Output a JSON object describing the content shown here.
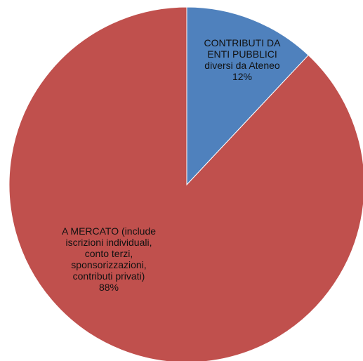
{
  "chart_data": {
    "type": "pie",
    "title": "",
    "slices": [
      {
        "label_lines": [
          "CONTRIBUTI DA",
          "ENTI PUBBLICI",
          "diversi da Ateneo"
        ],
        "percent_label": "12%",
        "value": 12,
        "color": "#4f81bd"
      },
      {
        "label_lines": [
          "A MERCATO (include",
          "iscrizioni individuali,",
          "conto terzi,",
          "sponsorizzazioni,",
          "contributi privati)"
        ],
        "percent_label": "88%",
        "value": 88,
        "color": "#c0504d"
      }
    ],
    "start_angle": "12 o'clock",
    "direction": "clockwise",
    "legend": "none",
    "slice_border_color": "#ffffff"
  }
}
